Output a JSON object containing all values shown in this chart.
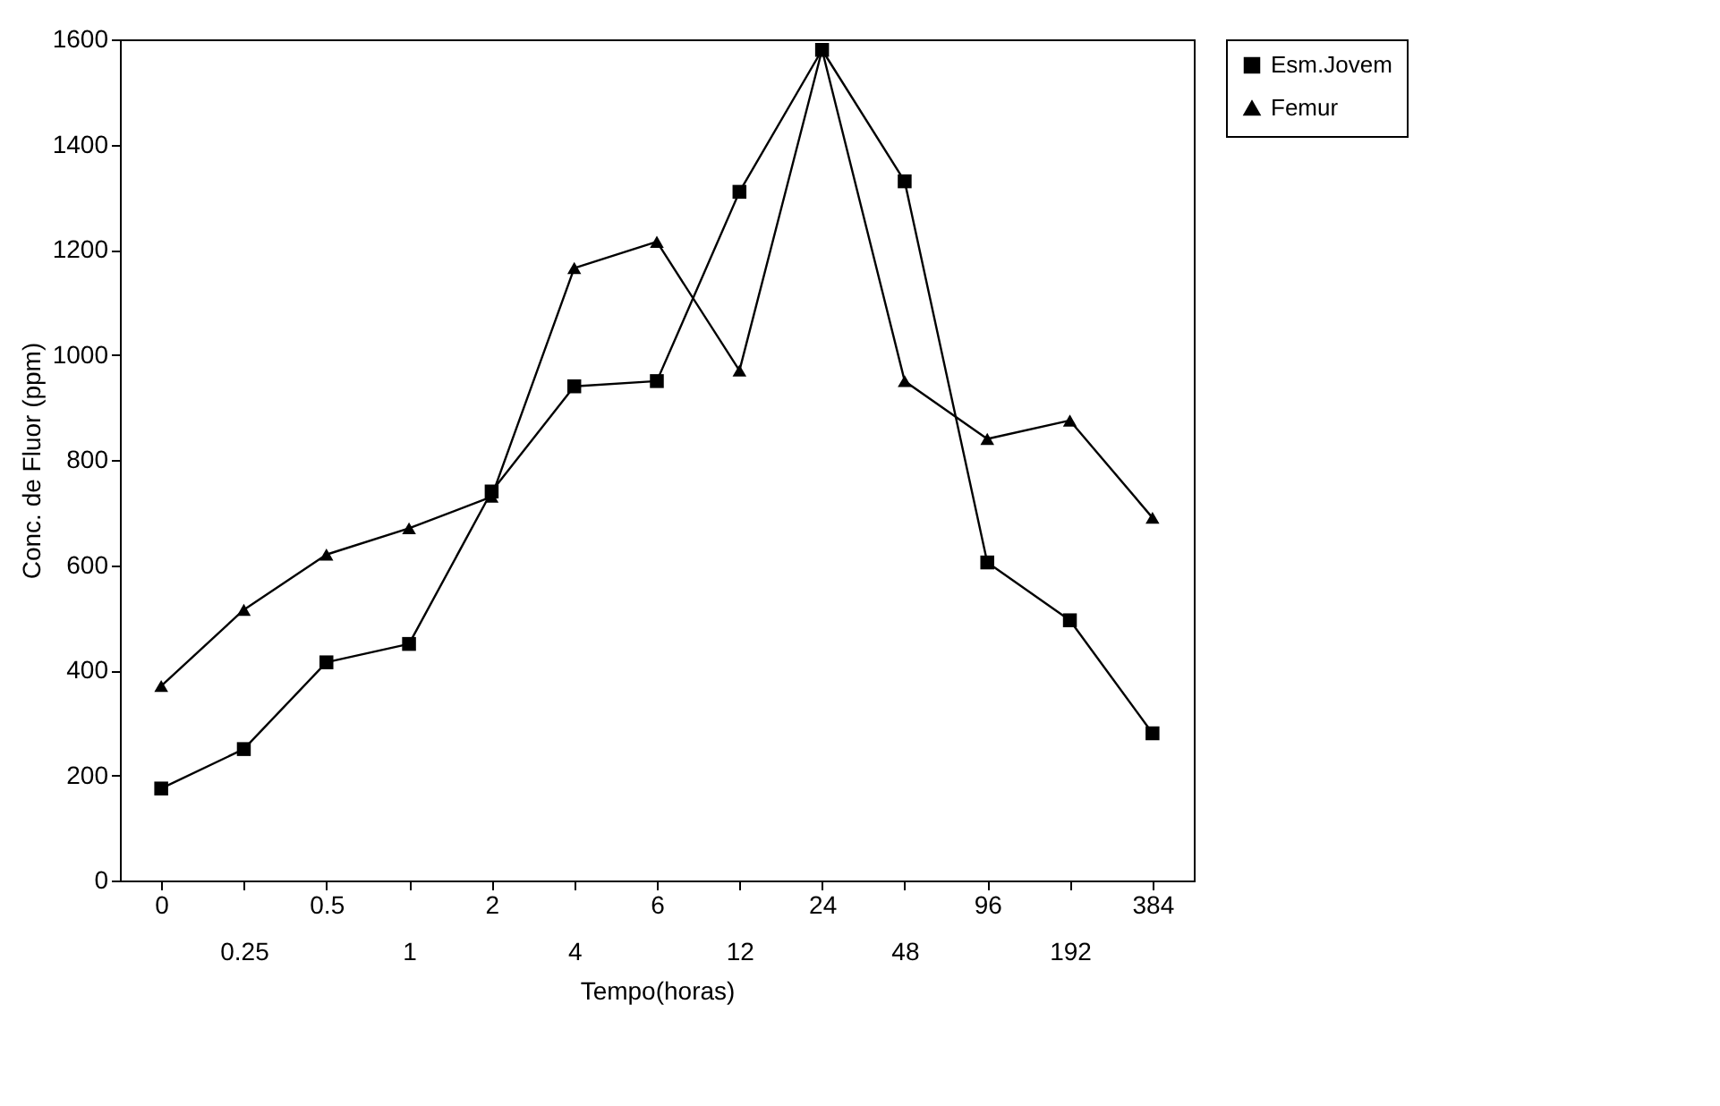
{
  "chart_data": {
    "type": "line",
    "xlabel": "Tempo(horas)",
    "ylabel": "Conc. de Fluor (ppm)",
    "categories": [
      "0",
      "0.25",
      "0.5",
      "1",
      "2",
      "4",
      "6",
      "12",
      "24",
      "48",
      "96",
      "192",
      "384"
    ],
    "ylim": [
      0,
      1600
    ],
    "yticks": [
      0,
      200,
      400,
      600,
      800,
      1000,
      1200,
      1400,
      1600
    ],
    "grid": false,
    "legend": "top right",
    "series": [
      {
        "name": "Esm.Jovem",
        "color": "#000000",
        "marker": "square",
        "values": [
          175,
          250,
          415,
          450,
          740,
          940,
          950,
          1310,
          1580,
          1330,
          605,
          495,
          280
        ]
      },
      {
        "name": "Femur",
        "color": "#000000",
        "marker": "triangle",
        "values": [
          370,
          515,
          620,
          670,
          730,
          1165,
          1215,
          970,
          1580,
          950,
          840,
          875,
          690
        ]
      }
    ]
  }
}
